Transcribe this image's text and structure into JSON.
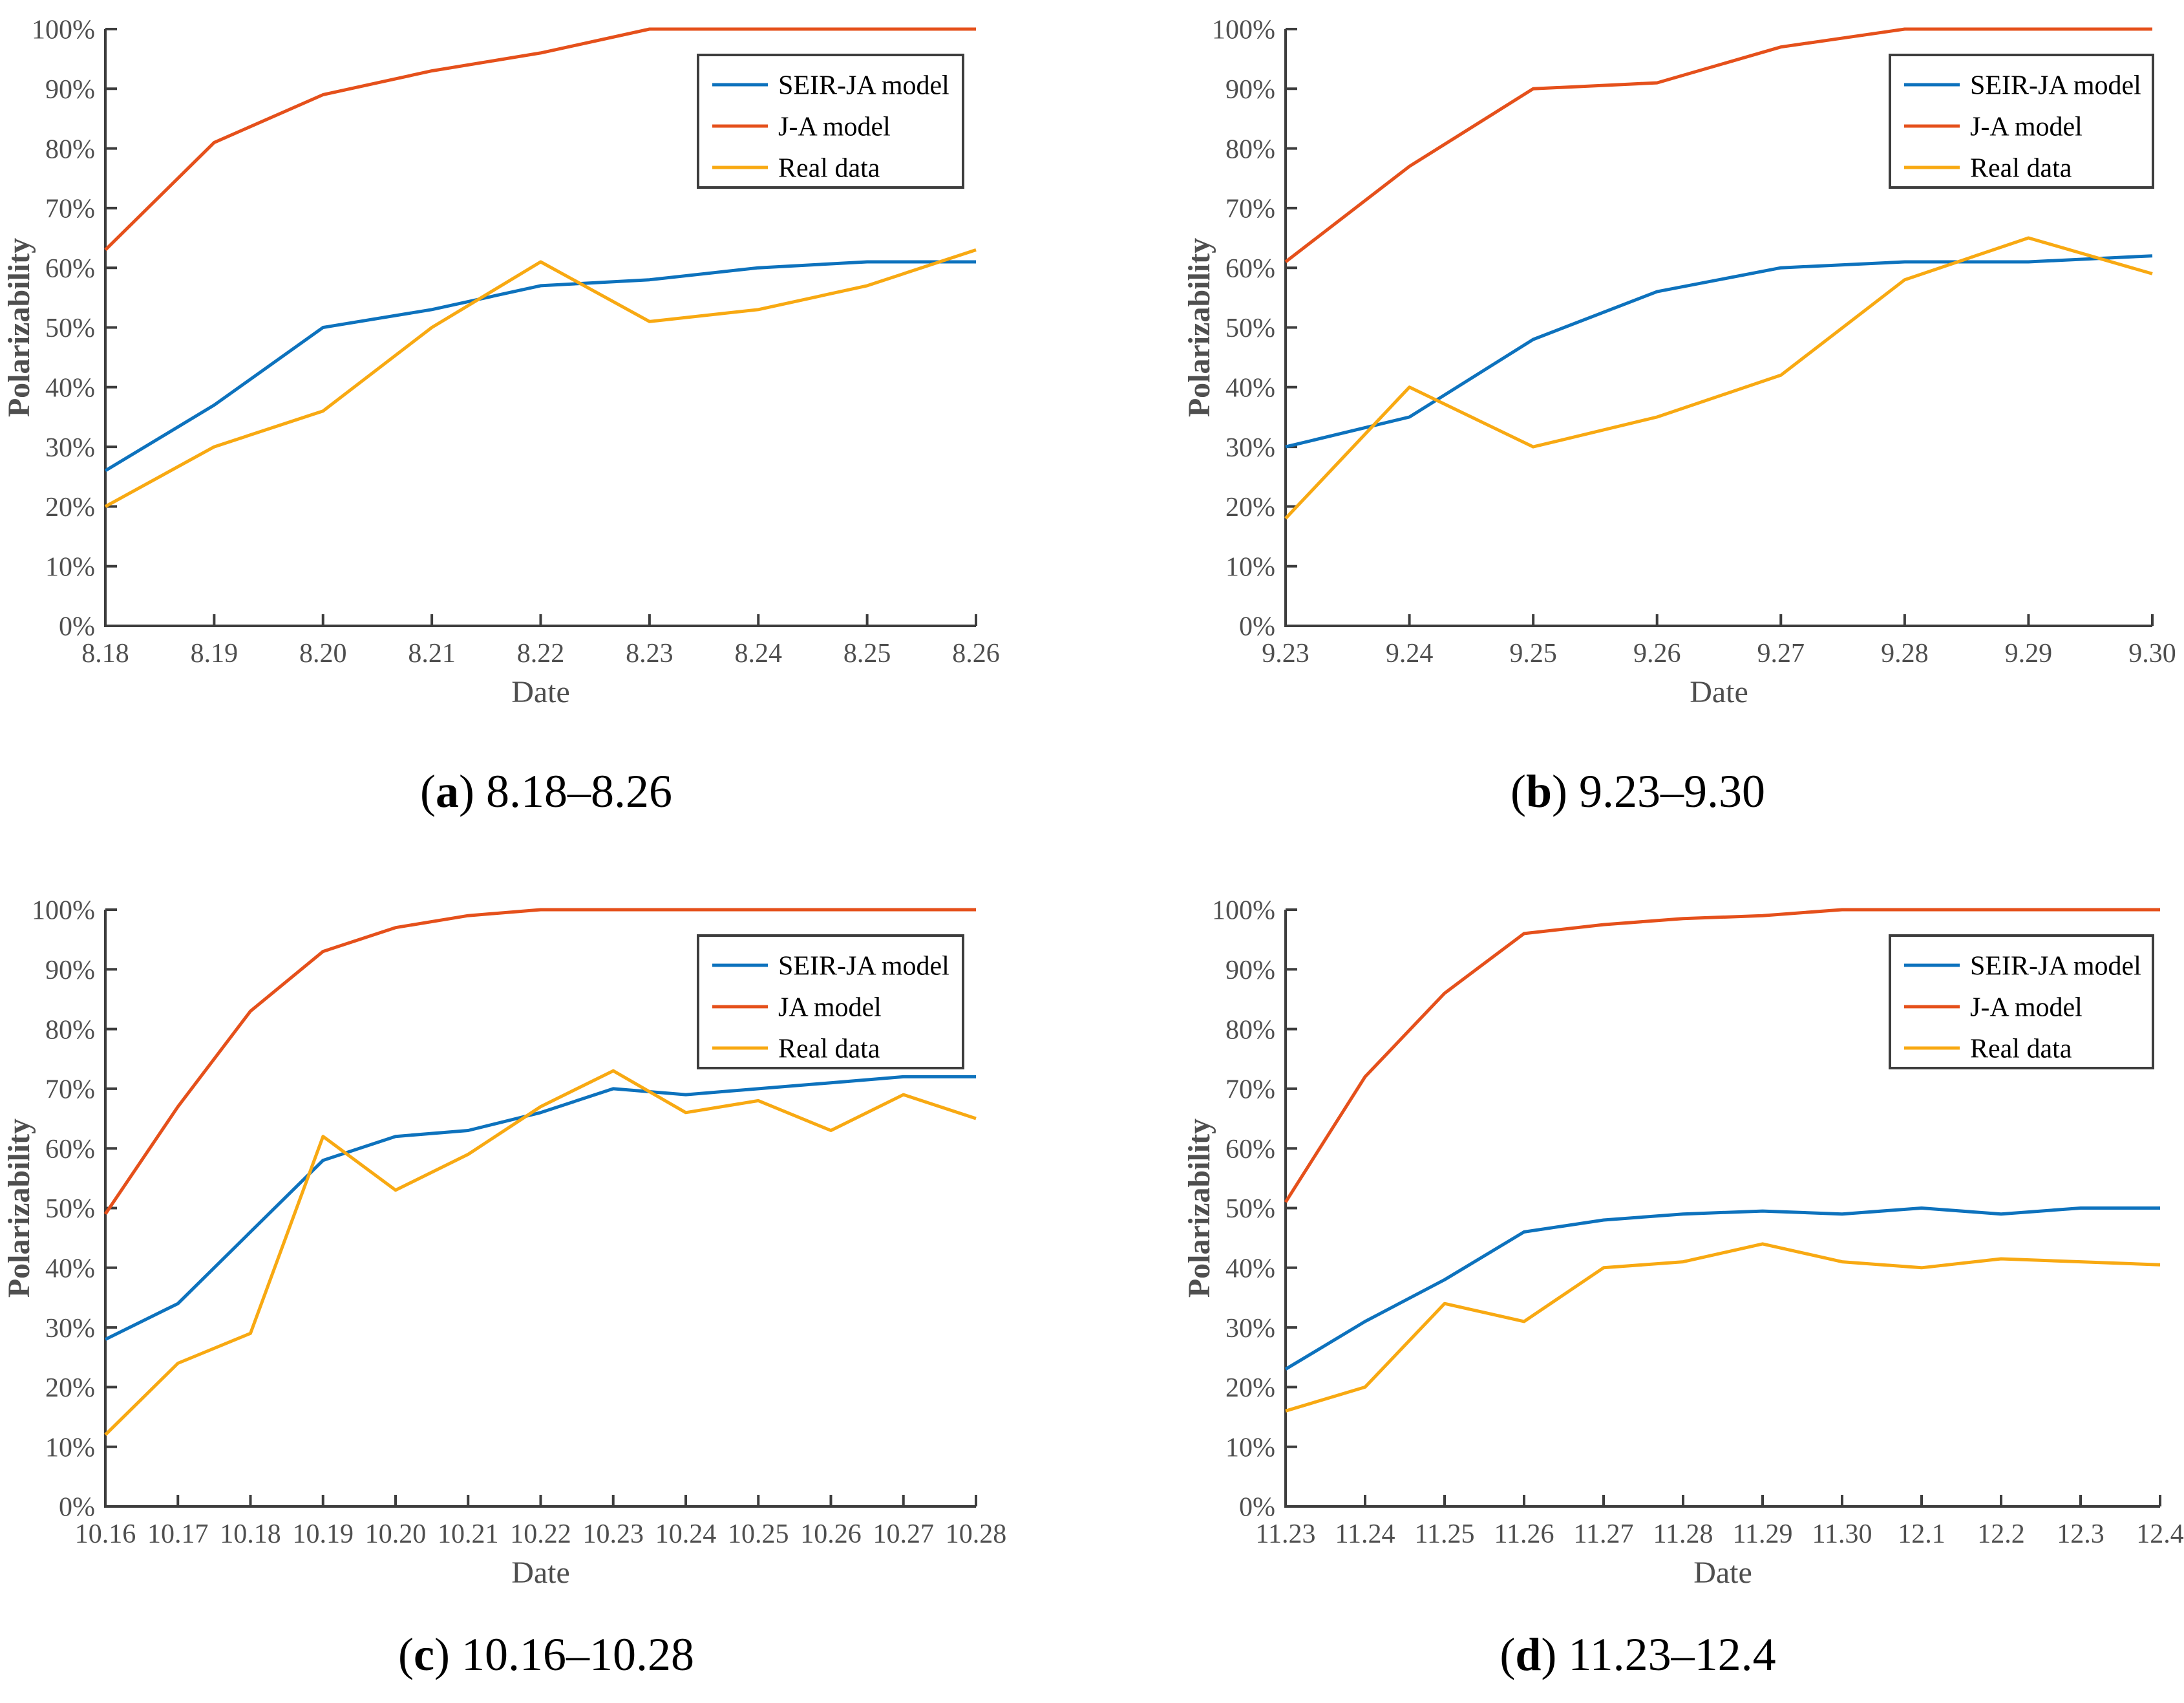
{
  "figure": {
    "background": "#ffffff",
    "axis_color": "#3d3d3d",
    "tick_label_color": "#4f4f4f",
    "caption_open": "(",
    "caption_close": ")",
    "y_ticks": [
      "0%",
      "10%",
      "20%",
      "30%",
      "40%",
      "50%",
      "60%",
      "70%",
      "80%",
      "90%",
      "100%"
    ],
    "series_colors": {
      "seir": "#0d72bd",
      "ja": "#e5501b",
      "real": "#f8a912"
    }
  },
  "chart_data": [
    {
      "panel": "a",
      "type": "line",
      "caption": {
        "letter": "a",
        "range": "8.18–8.26"
      },
      "xlabel": "Date",
      "ylabel": "Polarizability",
      "ylim": [
        0,
        100
      ],
      "grid": false,
      "legend_position": "top-right",
      "categories": [
        "8.18",
        "8.19",
        "8.20",
        "8.21",
        "8.22",
        "8.23",
        "8.24",
        "8.25",
        "8.26"
      ],
      "series": [
        {
          "name": "SEIR-JA model",
          "color": "#0d72bd",
          "values": [
            26,
            37,
            50,
            53,
            57,
            58,
            60,
            61,
            61
          ]
        },
        {
          "name": "J-A model",
          "color": "#e5501b",
          "values": [
            63,
            81,
            89,
            93,
            96,
            100,
            100,
            100,
            100
          ]
        },
        {
          "name": "Real data",
          "color": "#f8a912",
          "values": [
            20,
            30,
            36,
            50,
            61,
            51,
            53,
            57,
            63
          ]
        }
      ]
    },
    {
      "panel": "b",
      "type": "line",
      "caption": {
        "letter": "b",
        "range": "9.23–9.30"
      },
      "xlabel": "Date",
      "ylabel": "Polarizability",
      "ylim": [
        0,
        100
      ],
      "grid": false,
      "legend_position": "top-right",
      "categories": [
        "9.23",
        "9.24",
        "9.25",
        "9.26",
        "9.27",
        "9.28",
        "9.29",
        "9.30"
      ],
      "series": [
        {
          "name": "SEIR-JA model",
          "color": "#0d72bd",
          "values": [
            30,
            35,
            48,
            56,
            60,
            61,
            61,
            62
          ]
        },
        {
          "name": "J-A model",
          "color": "#e5501b",
          "values": [
            61,
            77,
            90,
            91,
            97,
            100,
            100,
            100
          ]
        },
        {
          "name": "Real data",
          "color": "#f8a912",
          "values": [
            18,
            40,
            30,
            35,
            42,
            58,
            65,
            59
          ]
        }
      ]
    },
    {
      "panel": "c",
      "type": "line",
      "caption": {
        "letter": "c",
        "range": "10.16–10.28"
      },
      "xlabel": "Date",
      "ylabel": "Polarizability",
      "ylim": [
        0,
        100
      ],
      "grid": false,
      "legend_position": "top-right",
      "categories": [
        "10.16",
        "10.17",
        "10.18",
        "10.19",
        "10.20",
        "10.21",
        "10.22",
        "10.23",
        "10.24",
        "10.25",
        "10.26",
        "10.27",
        "10.28"
      ],
      "series": [
        {
          "name": "SEIR-JA model",
          "color": "#0d72bd",
          "values": [
            28,
            34,
            46,
            58,
            62,
            63,
            66,
            70,
            69,
            70,
            71,
            72,
            72
          ]
        },
        {
          "name": "JA model",
          "color": "#e5501b",
          "values": [
            49,
            67,
            83,
            93,
            97,
            99,
            100,
            100,
            100,
            100,
            100,
            100,
            100
          ]
        },
        {
          "name": "Real data",
          "color": "#f8a912",
          "values": [
            12,
            24,
            29,
            62,
            53,
            59,
            67,
            73,
            66,
            68,
            63,
            69,
            65
          ]
        }
      ]
    },
    {
      "panel": "d",
      "type": "line",
      "caption": {
        "letter": "d",
        "range": "11.23–12.4"
      },
      "xlabel": "Date",
      "ylabel": "Polarizability",
      "ylim": [
        0,
        100
      ],
      "grid": false,
      "legend_position": "top-right",
      "categories": [
        "11.23",
        "11.24",
        "11.25",
        "11.26",
        "11.27",
        "11.28",
        "11.29",
        "11.30",
        "12.1",
        "12.2",
        "12.3",
        "12.4"
      ],
      "series": [
        {
          "name": "SEIR-JA model",
          "color": "#0d72bd",
          "values": [
            23,
            31,
            38,
            46,
            48,
            49,
            49.5,
            49,
            50,
            49,
            50,
            50
          ]
        },
        {
          "name": "J-A model",
          "color": "#e5501b",
          "values": [
            51,
            72,
            86,
            96,
            97.5,
            98.5,
            99,
            100,
            100,
            100,
            100,
            100
          ]
        },
        {
          "name": "Real data",
          "color": "#f8a912",
          "values": [
            16,
            20,
            34,
            31,
            40,
            41,
            44,
            41,
            40,
            41.5,
            41,
            40.5
          ]
        }
      ]
    }
  ]
}
